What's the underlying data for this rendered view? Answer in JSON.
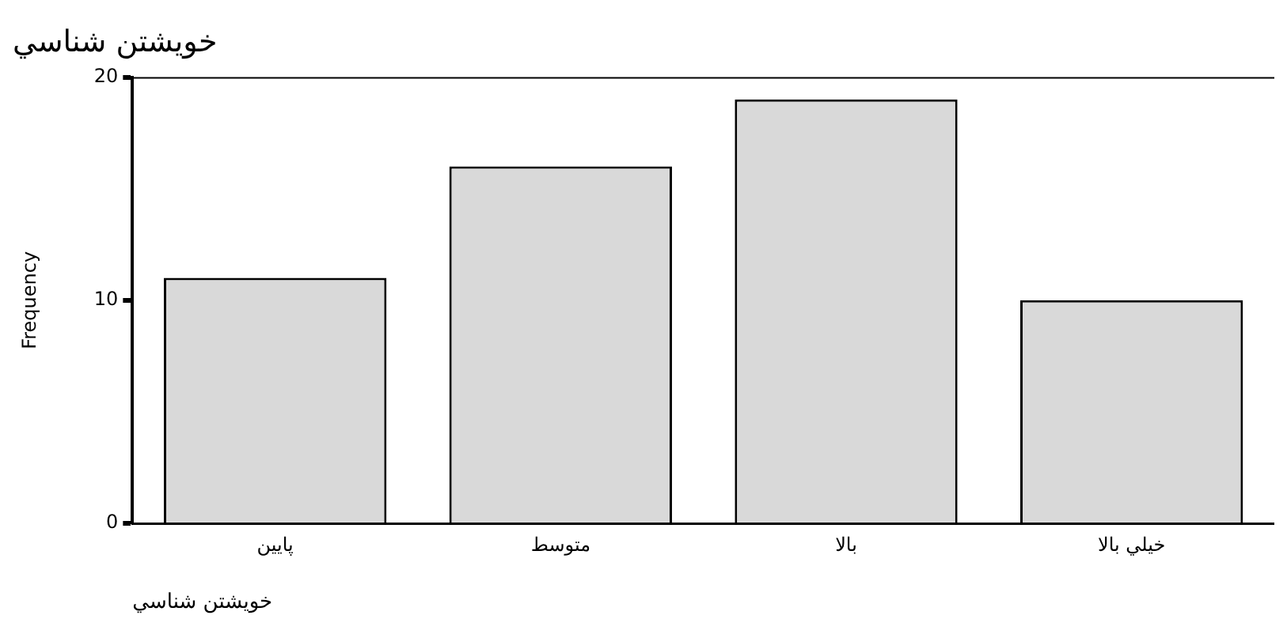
{
  "chart_data": {
    "type": "bar",
    "title": "خويشتن شناسي",
    "xlabel": "خويشتن شناسي",
    "ylabel": "Frequency",
    "categories": [
      "پايين",
      "متوسط",
      "بالا",
      "خيلي بالا"
    ],
    "values": [
      11,
      16,
      19,
      10
    ],
    "color": "#d9d9d9",
    "ylim": [
      0,
      20
    ],
    "yticks": [
      0,
      10,
      20
    ],
    "grid": false,
    "legend": false
  }
}
